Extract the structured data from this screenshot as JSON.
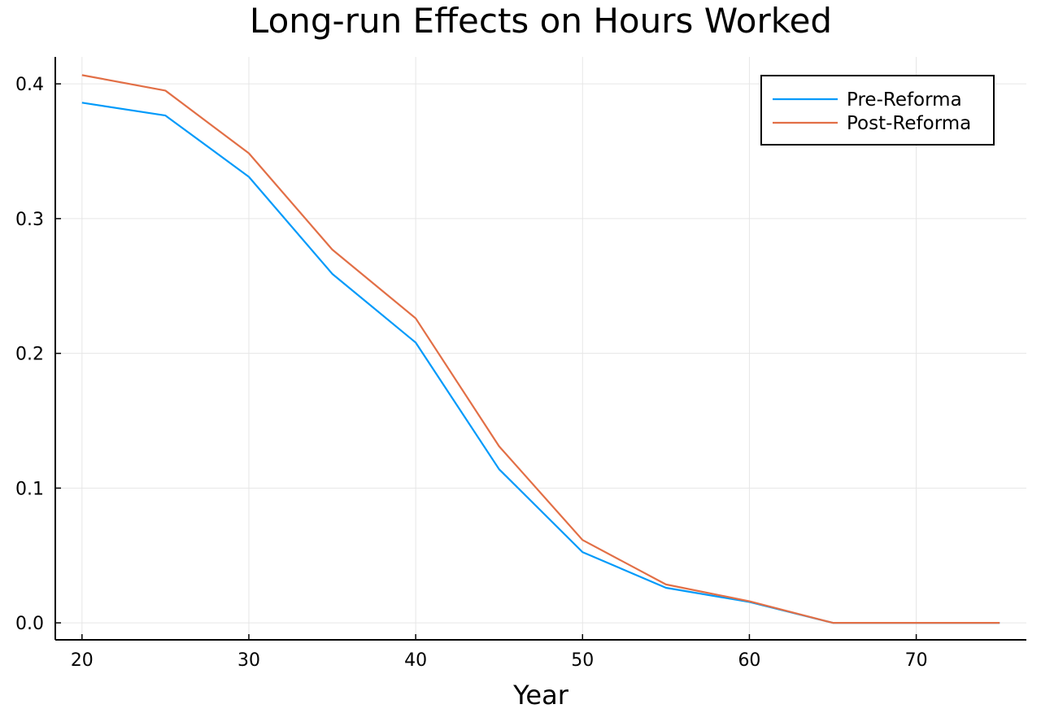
{
  "chart_data": {
    "type": "line",
    "title": "Long-run Effects on Hours Worked",
    "xlabel": "Year",
    "ylabel": "",
    "x": [
      20,
      25,
      30,
      35,
      40,
      45,
      50,
      55,
      60,
      65,
      70,
      75
    ],
    "xlim": [
      18.4,
      76.6
    ],
    "ylim": [
      -0.0126,
      0.42
    ],
    "xticks": [
      20,
      30,
      40,
      50,
      60,
      70
    ],
    "yticks": [
      0.0,
      0.1,
      0.2,
      0.3,
      0.4
    ],
    "ytick_labels": [
      "0.0",
      "0.1",
      "0.2",
      "0.3",
      "0.4"
    ],
    "grid": true,
    "legend_position": "top-right",
    "series": [
      {
        "name": "Pre-Reforma",
        "color": "#009AFA",
        "values": [
          0.386,
          0.3765,
          0.331,
          0.259,
          0.208,
          0.114,
          0.0525,
          0.026,
          0.0155,
          0.0,
          0.0,
          0.0
        ]
      },
      {
        "name": "Post-Reforma",
        "color": "#E26F46",
        "values": [
          0.4065,
          0.395,
          0.3485,
          0.277,
          0.226,
          0.131,
          0.0615,
          0.0285,
          0.016,
          0.0,
          0.0,
          0.0
        ]
      }
    ]
  }
}
